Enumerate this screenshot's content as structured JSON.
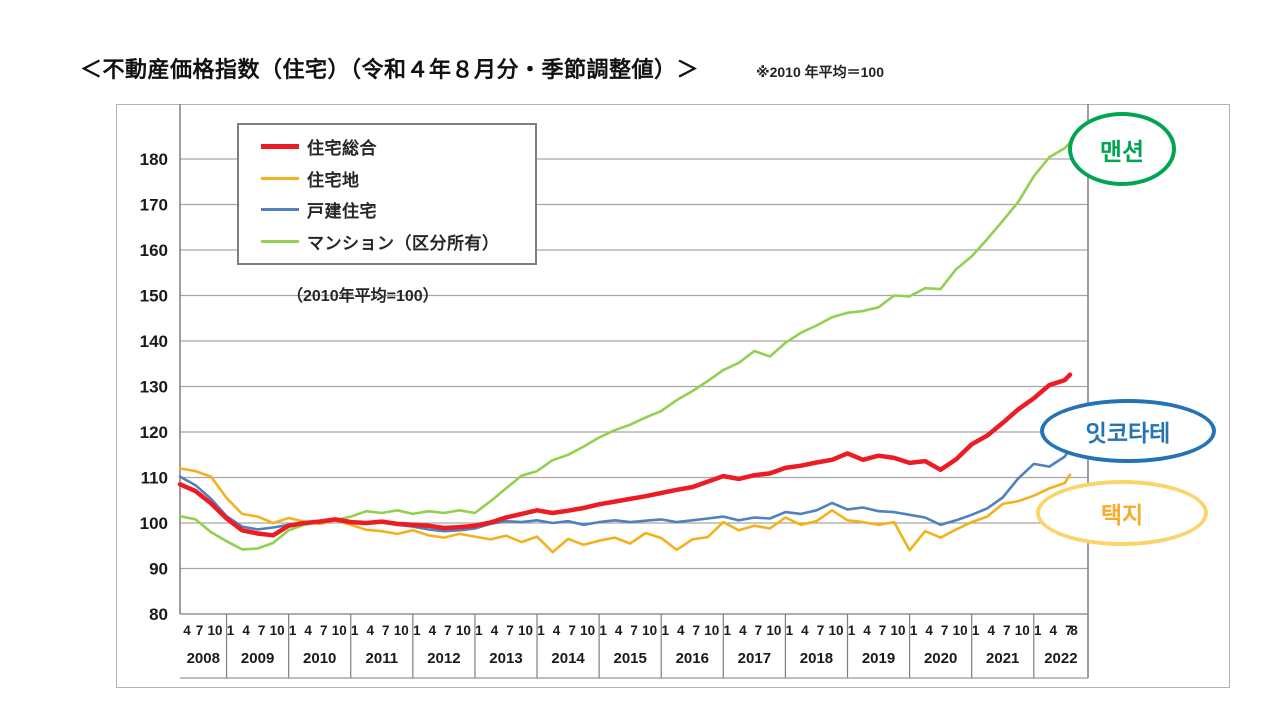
{
  "title": "＜不動産価格指数（住宅）（令和４年８月分・季節調整値）＞",
  "note": "※2010 年平均＝100",
  "legend": {
    "items": [
      {
        "label": "住宅総合",
        "color": "#ed1c24",
        "thick": 5
      },
      {
        "label": "住宅地",
        "color": "#f3b21b",
        "thick": 3
      },
      {
        "label": "戸建住宅",
        "color": "#4f81bd",
        "thick": 3
      },
      {
        "label": "マンション（区分所有）",
        "color": "#92d050",
        "thick": 3
      }
    ],
    "subnote": "（2010年平均=100）"
  },
  "annotations": [
    {
      "text": "맨션",
      "color": "#00a551",
      "border_color": "#00a551"
    },
    {
      "text": "잇코타테",
      "color": "#2373b5",
      "border_color": "#2373b5"
    },
    {
      "text": "택지",
      "color": "#f4ae2b",
      "border_color": "#fbd56a"
    }
  ],
  "chart_data": {
    "type": "line",
    "title": "不動産価格指数（住宅）令和4年8月分・季節調整値",
    "x_start": "2008-04",
    "x_end": "2022-08",
    "x_unit": "months since 2008-04, ticks at months 1/4/7/10",
    "ylim": [
      80,
      180
    ],
    "ytick_step": 10,
    "grid": "horizontal",
    "legend_position": "top-left",
    "baseline_note": "2010 average = 100",
    "years": [
      "2008",
      "2009",
      "2010",
      "2011",
      "2012",
      "2013",
      "2014",
      "2015",
      "2016",
      "2017",
      "2018",
      "2019",
      "2020",
      "2021",
      "2022"
    ],
    "year_start_months": [
      0,
      9,
      21,
      33,
      45,
      57,
      69,
      81,
      93,
      105,
      117,
      129,
      141,
      153,
      165
    ],
    "quarter_months": [
      0,
      3,
      6,
      9,
      12,
      15,
      18,
      21,
      24,
      27,
      30,
      33,
      36,
      39,
      42,
      45,
      48,
      51,
      54,
      57,
      60,
      63,
      66,
      69,
      72,
      75,
      78,
      81,
      84,
      87,
      90,
      93,
      96,
      99,
      102,
      105,
      108,
      111,
      114,
      117,
      120,
      123,
      126,
      129,
      132,
      135,
      138,
      141,
      144,
      147,
      150,
      153,
      156,
      159,
      162,
      165,
      168,
      171,
      172
    ],
    "quarter_labels": [
      "4",
      "7",
      "10",
      "1",
      "4",
      "7",
      "10",
      "1",
      "4",
      "7",
      "10",
      "1",
      "4",
      "7",
      "10",
      "1",
      "4",
      "7",
      "10",
      "1",
      "4",
      "7",
      "10",
      "1",
      "4",
      "7",
      "10",
      "1",
      "4",
      "7",
      "10",
      "1",
      "4",
      "7",
      "10",
      "1",
      "4",
      "7",
      "10",
      "1",
      "4",
      "7",
      "10",
      "1",
      "4",
      "7",
      "10",
      "1",
      "4",
      "7",
      "10",
      "1",
      "4",
      "7",
      "10",
      "1",
      "4",
      "7",
      "8"
    ],
    "series": [
      {
        "name": "マンション（区分所有）",
        "color": "#92d050",
        "width": 2.6,
        "values": [
          101.5,
          100.8,
          98.0,
          96.0,
          94.2,
          94.4,
          95.6,
          98.4,
          99.6,
          100.2,
          100.6,
          101.4,
          102.6,
          102.2,
          102.8,
          102.0,
          102.6,
          102.2,
          102.8,
          102.2,
          104.8,
          107.6,
          110.4,
          111.4,
          113.8,
          115.0,
          116.8,
          118.8,
          120.4,
          121.6,
          123.2,
          124.6,
          127.0,
          129.0,
          131.2,
          133.6,
          135.2,
          137.8,
          136.6,
          139.6,
          141.8,
          143.4,
          145.2,
          146.2,
          146.6,
          147.4,
          150.0,
          149.8,
          151.6,
          151.4,
          155.8,
          158.6,
          162.4,
          166.4,
          170.6,
          176.2,
          180.4,
          182.4,
          183.6
        ]
      },
      {
        "name": "住宅地",
        "color": "#f3b21b",
        "width": 2.6,
        "values": [
          112.0,
          111.4,
          110.2,
          105.5,
          102.0,
          101.4,
          100.0,
          101.1,
          100.3,
          99.8,
          100.6,
          99.6,
          98.5,
          98.2,
          97.6,
          98.4,
          97.3,
          96.8,
          97.6,
          97.0,
          96.4,
          97.2,
          95.8,
          97.0,
          93.6,
          96.5,
          95.2,
          96.1,
          96.8,
          95.5,
          97.8,
          96.7,
          94.1,
          96.4,
          96.9,
          100.2,
          98.4,
          99.4,
          98.8,
          101.2,
          99.6,
          100.4,
          102.8,
          100.6,
          100.2,
          99.6,
          100.2,
          94.0,
          98.2,
          96.8,
          98.6,
          100.2,
          101.4,
          104.2,
          104.8,
          106.0,
          107.6,
          108.8,
          110.6
        ]
      },
      {
        "name": "戸建住宅",
        "color": "#4f81bd",
        "width": 2.6,
        "values": [
          110.2,
          108.3,
          105.3,
          101.5,
          99.2,
          98.6,
          99.0,
          99.6,
          100.0,
          100.4,
          100.8,
          100.3,
          100.0,
          100.3,
          99.6,
          99.2,
          98.6,
          98.2,
          98.4,
          98.8,
          99.8,
          100.4,
          100.2,
          100.6,
          100.0,
          100.4,
          99.6,
          100.2,
          100.6,
          100.2,
          100.5,
          100.8,
          100.2,
          100.6,
          101.0,
          101.4,
          100.6,
          101.2,
          101.0,
          102.4,
          102.0,
          102.8,
          104.4,
          103.0,
          103.4,
          102.6,
          102.4,
          101.8,
          101.2,
          99.6,
          100.6,
          101.8,
          103.2,
          105.6,
          109.8,
          113.0,
          112.4,
          114.6,
          116.4
        ]
      },
      {
        "name": "住宅総合",
        "color": "#ed1c24",
        "width": 4.5,
        "values": [
          108.5,
          107.0,
          104.3,
          101.0,
          98.4,
          97.7,
          97.3,
          99.4,
          100.0,
          100.3,
          100.8,
          100.2,
          100.0,
          100.3,
          99.8,
          99.6,
          99.4,
          98.9,
          99.1,
          99.4,
          100.1,
          101.2,
          102.0,
          102.8,
          102.2,
          102.7,
          103.3,
          104.1,
          104.7,
          105.3,
          105.9,
          106.6,
          107.3,
          107.9,
          109.1,
          110.3,
          109.7,
          110.5,
          110.9,
          112.1,
          112.6,
          113.3,
          113.9,
          115.3,
          113.9,
          114.8,
          114.3,
          113.2,
          113.6,
          111.7,
          114.0,
          117.3,
          119.2,
          122.0,
          125.0,
          127.4,
          130.3,
          131.4,
          132.6
        ]
      }
    ]
  }
}
